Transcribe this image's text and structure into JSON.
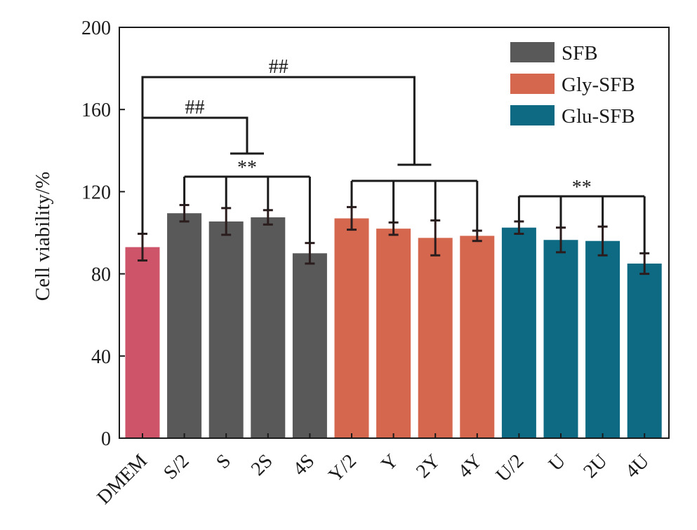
{
  "chart_data": {
    "type": "bar",
    "ylabel": "Cell viability/%",
    "xlabel": "",
    "ylim": [
      0,
      200
    ],
    "yticks": [
      0,
      40,
      80,
      120,
      160,
      200
    ],
    "grid": false,
    "legend_position": "top-right",
    "categories": [
      "DMEM",
      "S/2",
      "S",
      "2S",
      "4S",
      "Y/2",
      "Y",
      "2Y",
      "4Y",
      "U/2",
      "U",
      "2U",
      "4U"
    ],
    "values": [
      93,
      109.5,
      105.5,
      107.5,
      90,
      107,
      102,
      97.5,
      98.5,
      102.5,
      96.5,
      96,
      85
    ],
    "errors": [
      6.5,
      4,
      6.5,
      3.5,
      5,
      5.5,
      3,
      8.5,
      2.5,
      3,
      6,
      7,
      5
    ],
    "bar_colors": [
      "#cd5469",
      "#595959",
      "#595959",
      "#595959",
      "#595959",
      "#d4674e",
      "#d4674e",
      "#d4674e",
      "#d4674e",
      "#0e6a82",
      "#0e6a82",
      "#0e6a82",
      "#0e6a82"
    ],
    "legend": [
      {
        "name": "SFB",
        "color": "#595959"
      },
      {
        "name": "Gly-SFB",
        "color": "#d4674e"
      },
      {
        "name": "Glu-SFB",
        "color": "#0e6a82"
      }
    ],
    "annotations": [
      {
        "text": "##",
        "from": "DMEM",
        "to_group": [
          "Y/2",
          "Y",
          "2Y",
          "4Y"
        ]
      },
      {
        "text": "##",
        "from": "DMEM",
        "to_group": [
          "S/2",
          "S",
          "2S",
          "4S"
        ]
      },
      {
        "text": "**",
        "group": [
          "S/2",
          "S",
          "2S",
          "4S"
        ]
      },
      {
        "text": "**",
        "group": [
          "U/2",
          "U",
          "2U",
          "4U"
        ]
      }
    ]
  }
}
